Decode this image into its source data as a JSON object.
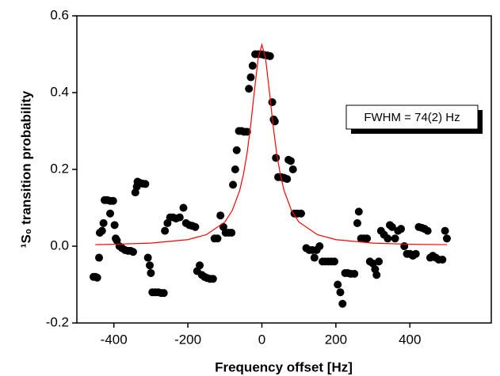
{
  "chart_data": {
    "type": "scatter",
    "x_label": "Frequency offset [Hz]",
    "y_label": "¹S₀ transition probability",
    "annotation": "FWHM = 74(2) Hz",
    "xlim": [
      -500,
      620
    ],
    "ylim": [
      -0.2,
      0.6
    ],
    "xticks": [
      -400,
      -200,
      0,
      200,
      400
    ],
    "yticks": [
      -0.2,
      {
        "value": 0,
        "label": "0.0"
      },
      0.2,
      0.4,
      0.6
    ],
    "color": "#000000",
    "x": [
      -455,
      -450,
      -445,
      -440,
      -438,
      -432,
      -428,
      -425,
      -418,
      -410,
      -402,
      -410,
      -398,
      -395,
      -392,
      -385,
      -378,
      -370,
      -362,
      -355,
      -348,
      -342,
      -338,
      -336,
      -330,
      -322,
      -315,
      -308,
      -303,
      -300,
      -296,
      -288,
      -280,
      -272,
      -265,
      -262,
      -255,
      -248,
      -240,
      -232,
      -222,
      -212,
      -205,
      -196,
      -188,
      -180,
      -175,
      -168,
      -162,
      -155,
      -148,
      -140,
      -132,
      -128,
      -120,
      -112,
      -104,
      -98,
      -90,
      -82,
      -78,
      -72,
      -68,
      -62,
      -55,
      -48,
      -40,
      -35,
      -30,
      -25,
      -18,
      -10,
      -2,
      6,
      14,
      22,
      28,
      32,
      35,
      38,
      44,
      52,
      60,
      68,
      72,
      78,
      84,
      88,
      96,
      106,
      120,
      128,
      136,
      142,
      148,
      156,
      164,
      172,
      180,
      188,
      196,
      205,
      212,
      218,
      225,
      232,
      240,
      250,
      258,
      262,
      268,
      276,
      284,
      292,
      300,
      306,
      310,
      316,
      322,
      330,
      340,
      346,
      352,
      360,
      368,
      376,
      385,
      392,
      400,
      408,
      416,
      424,
      432,
      440,
      448,
      455,
      462,
      470,
      478,
      488,
      495,
      500
    ],
    "values": [
      -0.08,
      -0.08,
      -0.082,
      -0.03,
      0.035,
      0.04,
      0.06,
      0.12,
      0.12,
      0.118,
      0.118,
      0.085,
      0.055,
      0.02,
      0.015,
      0.0,
      -0.005,
      -0.01,
      -0.012,
      -0.012,
      -0.015,
      0.14,
      0.155,
      0.168,
      0.165,
      0.163,
      0.162,
      -0.03,
      -0.05,
      -0.07,
      -0.12,
      -0.12,
      -0.12,
      -0.122,
      -0.122,
      0.04,
      0.06,
      0.075,
      0.075,
      0.072,
      0.075,
      0.1,
      0.06,
      0.055,
      0.053,
      0.05,
      -0.065,
      -0.05,
      -0.075,
      -0.08,
      -0.083,
      -0.085,
      -0.085,
      0.02,
      0.02,
      0.08,
      0.05,
      0.035,
      0.035,
      0.035,
      0.16,
      0.2,
      0.25,
      0.3,
      0.3,
      0.298,
      0.298,
      0.41,
      0.44,
      0.47,
      0.5,
      0.5,
      0.5,
      0.498,
      0.497,
      0.495,
      0.375,
      0.33,
      0.325,
      0.23,
      0.18,
      0.18,
      0.178,
      0.175,
      0.225,
      0.222,
      0.2,
      0.085,
      0.085,
      0.085,
      -0.005,
      -0.01,
      -0.01,
      -0.03,
      -0.01,
      0.0,
      -0.04,
      -0.04,
      -0.04,
      -0.04,
      -0.04,
      -0.1,
      -0.12,
      -0.15,
      -0.07,
      -0.07,
      -0.072,
      -0.072,
      0.06,
      0.09,
      0.02,
      0.02,
      0.02,
      -0.04,
      -0.045,
      -0.06,
      -0.075,
      -0.04,
      0.04,
      0.03,
      0.02,
      0.055,
      0.05,
      0.02,
      0.04,
      0.045,
      0.0,
      -0.02,
      -0.02,
      -0.025,
      -0.02,
      0.05,
      0.048,
      0.045,
      0.04,
      -0.03,
      -0.025,
      -0.03,
      -0.035,
      -0.035,
      0.04,
      0.02
    ],
    "fit": {
      "color": "#ff0000",
      "x": [
        -450,
        -400,
        -300,
        -200,
        -150,
        -100,
        -80,
        -60,
        -50,
        -40,
        -30,
        -20,
        -10,
        0,
        10,
        20,
        30,
        40,
        50,
        60,
        80,
        100,
        150,
        200,
        300,
        400,
        500
      ],
      "values": [
        0.004,
        0.005,
        0.008,
        0.017,
        0.03,
        0.063,
        0.093,
        0.145,
        0.186,
        0.242,
        0.317,
        0.406,
        0.489,
        0.525,
        0.489,
        0.406,
        0.317,
        0.242,
        0.186,
        0.145,
        0.093,
        0.063,
        0.03,
        0.017,
        0.008,
        0.005,
        0.004
      ]
    }
  }
}
